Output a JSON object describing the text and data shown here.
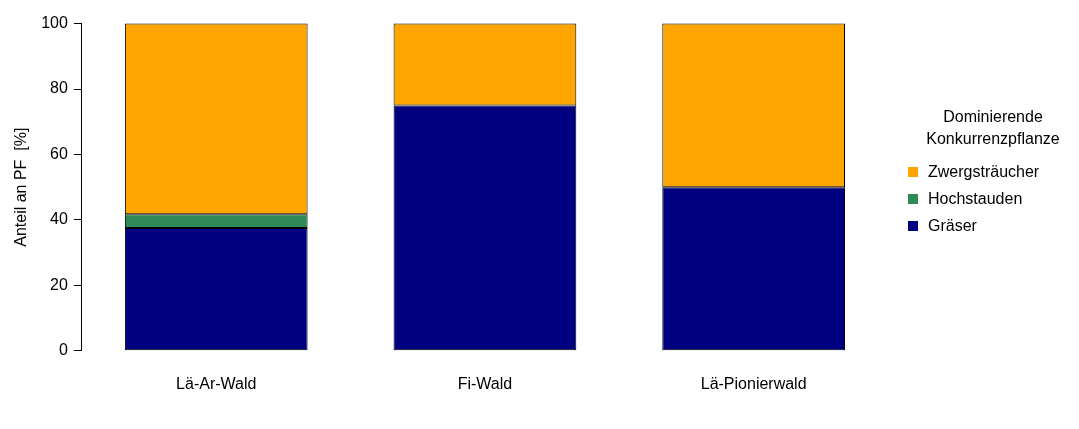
{
  "chart_data": {
    "type": "bar",
    "stacked": true,
    "ylabel": "Anteil an PF  [%]",
    "legend_title": "Dominierende Konkurrenzpflanze",
    "legend": "right",
    "categories": [
      "Lä-Ar-Wald",
      "Fi-Wald",
      "Lä-Pionierwald"
    ],
    "ylim": [
      0,
      100
    ],
    "yticks": [
      0,
      20,
      40,
      60,
      80,
      100
    ],
    "grid": false,
    "series": [
      {
        "name": "Gräser",
        "color": "#000080",
        "values": [
          37.5,
          75,
          50
        ]
      },
      {
        "name": "Hochstauden",
        "color": "#2e8b57",
        "values": [
          4.2,
          0,
          0
        ]
      },
      {
        "name": "Zwergsträucher",
        "color": "#ffa500",
        "values": [
          58.3,
          25,
          50
        ]
      }
    ]
  }
}
